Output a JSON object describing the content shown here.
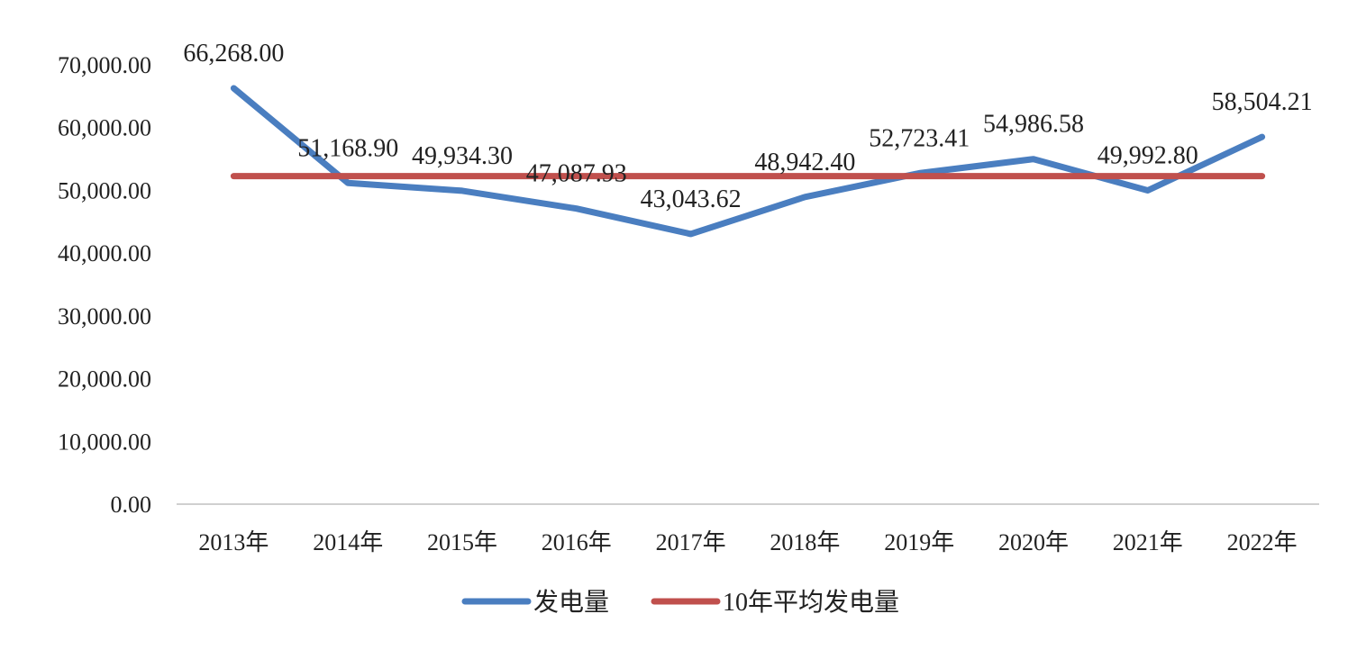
{
  "chart_data": {
    "type": "line",
    "title": "",
    "xlabel": "",
    "ylabel": "",
    "categories": [
      "2013年",
      "2014年",
      "2015年",
      "2016年",
      "2017年",
      "2018年",
      "2019年",
      "2020年",
      "2021年",
      "2022年"
    ],
    "ylim": [
      0,
      70000
    ],
    "y_ticks": [
      0,
      10000,
      20000,
      30000,
      40000,
      50000,
      60000,
      70000
    ],
    "y_tick_labels": [
      "0.00",
      "10,000.00",
      "20,000.00",
      "30,000.00",
      "40,000.00",
      "50,000.00",
      "60,000.00",
      "70,000.00"
    ],
    "grid": false,
    "legend_position": "bottom",
    "series": [
      {
        "name": "发电量",
        "color": "#4a7ec0",
        "values": [
          66268.0,
          51168.9,
          49934.3,
          47087.93,
          43043.62,
          48942.4,
          52723.41,
          54986.58,
          49992.8,
          58504.21
        ],
        "data_labels": [
          "66,268.00",
          "51,168.90",
          "49,934.30",
          "47,087.93",
          "43,043.62",
          "48,942.40",
          "52,723.41",
          "54,986.58",
          "49,992.80",
          "58,504.21"
        ]
      },
      {
        "name": "10年平均发电量",
        "color": "#c0504d",
        "values": [
          52265.22,
          52265.22,
          52265.22,
          52265.22,
          52265.22,
          52265.22,
          52265.22,
          52265.22,
          52265.22,
          52265.22
        ]
      }
    ]
  }
}
